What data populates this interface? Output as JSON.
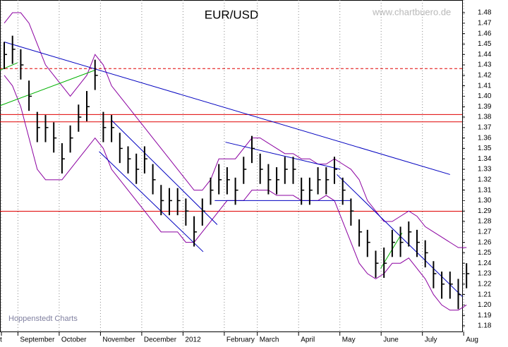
{
  "chart_data": {
    "type": "ohlc",
    "title": "EUR/USD",
    "watermark": "www.chartbuero.de",
    "source": "Hoppenstedt Charts",
    "categories": [
      "t",
      null,
      "September",
      null,
      null,
      null,
      null,
      "October",
      null,
      null,
      null,
      null,
      "November",
      null,
      null,
      null,
      null,
      "December",
      null,
      null,
      null,
      null,
      "2012",
      null,
      null,
      null,
      null,
      "February",
      null,
      null,
      null,
      "March",
      null,
      null,
      null,
      null,
      "April",
      null,
      null,
      null,
      null,
      "May",
      null,
      null,
      null,
      null,
      "June",
      null,
      null,
      null,
      null,
      "July",
      null,
      null,
      null,
      null,
      "Aug"
    ],
    "high": [
      1.452,
      1.458,
      1.445,
      1.415,
      1.385,
      1.382,
      1.375,
      1.355,
      1.372,
      1.392,
      1.405,
      1.435,
      1.385,
      1.382,
      1.365,
      1.352,
      1.345,
      1.352,
      1.335,
      1.315,
      1.312,
      1.312,
      1.302,
      1.285,
      1.302,
      1.322,
      1.335,
      1.332,
      1.322,
      1.342,
      1.362,
      1.345,
      1.335,
      1.332,
      1.342,
      1.342,
      1.322,
      1.322,
      1.332,
      1.332,
      1.342,
      1.322,
      1.302,
      1.282,
      1.272,
      1.252,
      1.255,
      1.272,
      1.275,
      1.28,
      1.272,
      1.262,
      1.242,
      1.232,
      1.232,
      1.225,
      1.24
    ],
    "low": [
      1.426,
      1.431,
      1.416,
      1.386,
      1.356,
      1.356,
      1.346,
      1.326,
      1.346,
      1.366,
      1.376,
      1.406,
      1.356,
      1.356,
      1.336,
      1.326,
      1.316,
      1.326,
      1.306,
      1.286,
      1.286,
      1.286,
      1.276,
      1.256,
      1.276,
      1.296,
      1.306,
      1.306,
      1.296,
      1.316,
      1.336,
      1.316,
      1.306,
      1.306,
      1.316,
      1.316,
      1.296,
      1.296,
      1.306,
      1.306,
      1.316,
      1.296,
      1.276,
      1.256,
      1.246,
      1.226,
      1.226,
      1.246,
      1.246,
      1.256,
      1.246,
      1.236,
      1.216,
      1.206,
      1.206,
      1.196,
      1.216
    ],
    "close": [
      1.44,
      1.445,
      1.43,
      1.4,
      1.37,
      1.37,
      1.36,
      1.34,
      1.36,
      1.38,
      1.39,
      1.42,
      1.37,
      1.37,
      1.35,
      1.34,
      1.33,
      1.34,
      1.32,
      1.3,
      1.3,
      1.3,
      1.29,
      1.27,
      1.29,
      1.31,
      1.32,
      1.32,
      1.31,
      1.33,
      1.35,
      1.33,
      1.32,
      1.32,
      1.33,
      1.33,
      1.31,
      1.31,
      1.32,
      1.32,
      1.33,
      1.31,
      1.29,
      1.27,
      1.26,
      1.24,
      1.24,
      1.26,
      1.26,
      1.27,
      1.26,
      1.25,
      1.23,
      1.22,
      1.22,
      1.21,
      1.23
    ],
    "upper_band": [
      1.47,
      1.48,
      1.48,
      1.47,
      1.45,
      1.43,
      1.42,
      1.41,
      1.4,
      1.41,
      1.42,
      1.44,
      1.43,
      1.41,
      1.4,
      1.39,
      1.38,
      1.37,
      1.36,
      1.35,
      1.34,
      1.33,
      1.32,
      1.31,
      1.31,
      1.32,
      1.34,
      1.34,
      1.34,
      1.35,
      1.36,
      1.36,
      1.355,
      1.35,
      1.345,
      1.345,
      1.34,
      1.34,
      1.335,
      1.335,
      1.34,
      1.335,
      1.33,
      1.32,
      1.3,
      1.29,
      1.28,
      1.28,
      1.285,
      1.29,
      1.285,
      1.275,
      1.27,
      1.265,
      1.26,
      1.255,
      1.255
    ],
    "lower_band": [
      1.42,
      1.41,
      1.39,
      1.36,
      1.33,
      1.32,
      1.32,
      1.32,
      1.33,
      1.34,
      1.35,
      1.36,
      1.35,
      1.33,
      1.32,
      1.31,
      1.3,
      1.29,
      1.28,
      1.27,
      1.27,
      1.27,
      1.26,
      1.26,
      1.27,
      1.28,
      1.29,
      1.3,
      1.3,
      1.3,
      1.31,
      1.31,
      1.31,
      1.305,
      1.305,
      1.305,
      1.3,
      1.3,
      1.3,
      1.305,
      1.3,
      1.28,
      1.26,
      1.24,
      1.23,
      1.225,
      1.23,
      1.24,
      1.24,
      1.245,
      1.235,
      1.225,
      1.21,
      1.2,
      1.195,
      1.195,
      1.2
    ],
    "bar_color": "#000000",
    "band_color": "#8b00a0",
    "hlines": [
      {
        "value": 1.4265,
        "color": "#e00000",
        "dashed": true
      },
      {
        "value": 1.3825,
        "color": "#e00000",
        "dashed": false
      },
      {
        "value": 1.3755,
        "color": "#e00000",
        "dashed": false
      },
      {
        "value": 1.2898,
        "color": "#e00000",
        "dashed": false
      }
    ],
    "trendlines": [
      {
        "x": [
          0,
          54
        ],
        "y": [
          1.452,
          1.325
        ],
        "color": "#0000c0"
      },
      {
        "x": [
          11.5,
          24.1
        ],
        "y": [
          1.347,
          1.251
        ],
        "color": "#0000c0"
      },
      {
        "x": [
          13,
          25.8
        ],
        "y": [
          1.377,
          1.277
        ],
        "color": "#0000c0"
      },
      {
        "x": [
          26.8,
          40.7
        ],
        "y": [
          1.356,
          1.33
        ],
        "color": "#0000c0"
      },
      {
        "x": [
          25.5,
          42
        ],
        "y": [
          1.3,
          1.3
        ],
        "color": "#0000c0"
      },
      {
        "x": [
          40.3,
          55.5
        ],
        "y": [
          1.325,
          1.208
        ],
        "color": "#0000c0"
      },
      {
        "x": [
          -0.5,
          11
        ],
        "y": [
          1.391,
          1.425
        ],
        "color": "#00b000"
      },
      {
        "x": [
          -0.5,
          1.6
        ],
        "y": [
          1.425,
          1.432
        ],
        "color": "#00b000"
      },
      {
        "x": [
          45.6,
          48.2
        ],
        "y": [
          1.235,
          1.269
        ],
        "color": "#00b000"
      }
    ],
    "ylim": [
      1.1746,
      1.4922
    ],
    "yticks": [
      1.18,
      1.19,
      {
        "value": 1.2,
        "label": "1.20"
      },
      1.21,
      1.22,
      1.23,
      1.24,
      1.25,
      1.26,
      1.27,
      1.28,
      1.29,
      {
        "value": 1.3,
        "label": "1.30"
      },
      1.31,
      1.32,
      1.33,
      1.34,
      1.35,
      1.36,
      1.37,
      1.38,
      1.39,
      {
        "value": 1.4,
        "label": "1.40"
      },
      1.41,
      1.42,
      1.43,
      1.44,
      1.45,
      1.46,
      1.47,
      1.48
    ],
    "grid": true
  }
}
